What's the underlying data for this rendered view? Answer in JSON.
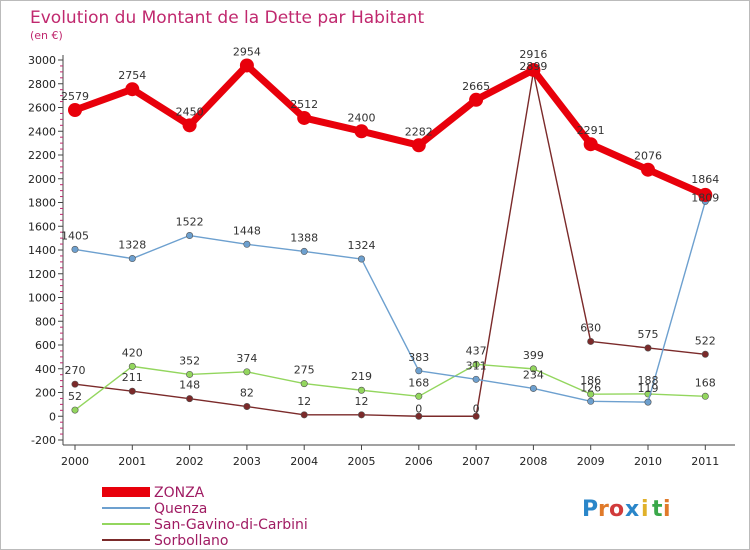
{
  "chart_data": {
    "type": "line",
    "title": "Evolution du Montant de la Dette par Habitant",
    "subtitle": "(en €)",
    "categories": [
      "2000",
      "2001",
      "2002",
      "2003",
      "2004",
      "2005",
      "2006",
      "2007",
      "2008",
      "2009",
      "2010",
      "2011"
    ],
    "y_ticks": [
      -200,
      0,
      200,
      400,
      600,
      800,
      1000,
      1200,
      1400,
      1600,
      1800,
      2000,
      2200,
      2400,
      2600,
      2800,
      3000
    ],
    "ylim": [
      -200,
      3000
    ],
    "grid": false,
    "legend_position": "bottom-left",
    "series": [
      {
        "name": "ZONZA",
        "color": "#e8000b",
        "values": [
          2579,
          2754,
          2450,
          2954,
          2512,
          2400,
          2282,
          2665,
          2916,
          2291,
          2076,
          1864
        ]
      },
      {
        "name": "Quenza",
        "color": "#6da0cf",
        "values": [
          1405,
          1328,
          1522,
          1448,
          1388,
          1324,
          383,
          311,
          234,
          126,
          119,
          1809
        ]
      },
      {
        "name": "San-Gavino-di-Carbini",
        "color": "#93d65e",
        "values": [
          52,
          420,
          352,
          374,
          275,
          219,
          168,
          437,
          399,
          186,
          188,
          168
        ]
      },
      {
        "name": "Sorbollano",
        "color": "#7b2a2a",
        "values": [
          270,
          211,
          148,
          82,
          12,
          12,
          0,
          0,
          2899,
          630,
          575,
          522
        ]
      }
    ],
    "data_labels": [
      {
        "x": "2000",
        "text": "2579"
      },
      {
        "x": "2001",
        "text": "2754"
      },
      {
        "x": "2002",
        "text": "2450"
      },
      {
        "x": "2003",
        "text": "2954"
      },
      {
        "x": "2004",
        "text": "2512"
      },
      {
        "x": "2005",
        "text": "2400"
      },
      {
        "x": "2006",
        "text": "2282"
      },
      {
        "x": "2007",
        "text": "2665"
      },
      {
        "x": "2008",
        "text": "2916"
      },
      {
        "x": "2008",
        "text": "2899"
      },
      {
        "x": "2009",
        "text": "2291"
      },
      {
        "x": "2010",
        "text": "2076"
      },
      {
        "x": "2011",
        "text": "1864"
      },
      {
        "x": "2011",
        "text": "1809"
      },
      {
        "x": "2000",
        "text": "1405"
      },
      {
        "x": "2001",
        "text": "1328"
      },
      {
        "x": "2002",
        "text": "1522"
      },
      {
        "x": "2003",
        "text": "1448"
      },
      {
        "x": "2004",
        "text": "1388"
      },
      {
        "x": "2005",
        "text": "1324"
      },
      {
        "x": "2006",
        "text": "383"
      },
      {
        "x": "2007",
        "text": "311"
      },
      {
        "x": "2008",
        "text": "234"
      },
      {
        "x": "2009",
        "text": "126"
      },
      {
        "x": "2010",
        "text": "119"
      },
      {
        "x": "2000",
        "text": "52"
      },
      {
        "x": "2001",
        "text": "420"
      },
      {
        "x": "2002",
        "text": "352"
      },
      {
        "x": "2003",
        "text": "374"
      },
      {
        "x": "2004",
        "text": "275"
      },
      {
        "x": "2005",
        "text": "219"
      },
      {
        "x": "2006",
        "text": "168"
      },
      {
        "x": "2007",
        "text": "437"
      },
      {
        "x": "2008",
        "text": "399"
      },
      {
        "x": "2009",
        "text": "186"
      },
      {
        "x": "2010",
        "text": "188"
      },
      {
        "x": "2011",
        "text": "168"
      },
      {
        "x": "2000",
        "text": "270"
      },
      {
        "x": "2001",
        "text": "211"
      },
      {
        "x": "2002",
        "text": "148"
      },
      {
        "x": "2003",
        "text": "82"
      },
      {
        "x": "2004",
        "text": "12"
      },
      {
        "x": "2005",
        "text": "12"
      },
      {
        "x": "2006",
        "text": "0"
      },
      {
        "x": "2007",
        "text": "0"
      },
      {
        "x": "2009",
        "text": "630"
      },
      {
        "x": "2010",
        "text": "575"
      },
      {
        "x": "2011",
        "text": "522"
      }
    ]
  },
  "brand": {
    "letters": [
      "P",
      "r",
      "o",
      "x",
      "i",
      "t",
      "i"
    ],
    "colors": [
      "#2a86c9",
      "#e07a2a",
      "#d13b3b",
      "#2a86c9",
      "#e0b12a",
      "#3aa84a",
      "#e07a2a"
    ]
  }
}
